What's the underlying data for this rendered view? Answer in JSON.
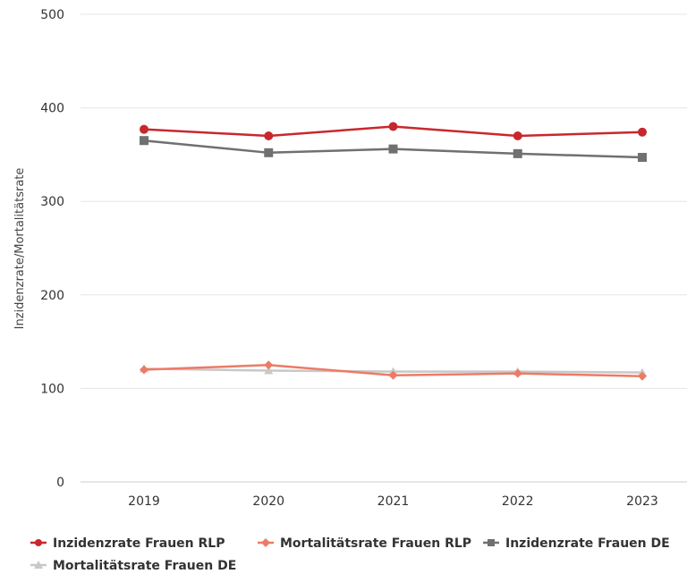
{
  "chart_data": {
    "type": "line",
    "title": "",
    "xlabel": "",
    "ylabel": "Inzidenzrate/Mortalitätsrate",
    "categories": [
      "2019",
      "2020",
      "2021",
      "2022",
      "2023"
    ],
    "ylim": [
      0,
      500
    ],
    "yticks": [
      0,
      100,
      200,
      300,
      400,
      500
    ],
    "grid": true,
    "legend_position": "bottom",
    "series": [
      {
        "name": "Inzidenzrate Frauen RLP",
        "values": [
          377,
          370,
          380,
          370,
          374
        ],
        "color": "#c8282d",
        "marker": "circle"
      },
      {
        "name": "Mortalitätsrate Frauen RLP",
        "values": [
          120,
          125,
          114,
          116,
          113
        ],
        "color": "#ec7b66",
        "marker": "diamond"
      },
      {
        "name": "Inzidenzrate Frauen DE",
        "values": [
          365,
          352,
          356,
          351,
          347
        ],
        "color": "#707070",
        "marker": "square"
      },
      {
        "name": "Mortalitätsrate Frauen DE",
        "values": [
          121,
          119,
          118,
          118,
          117
        ],
        "color": "#c8c8c8",
        "marker": "triangle"
      }
    ]
  }
}
